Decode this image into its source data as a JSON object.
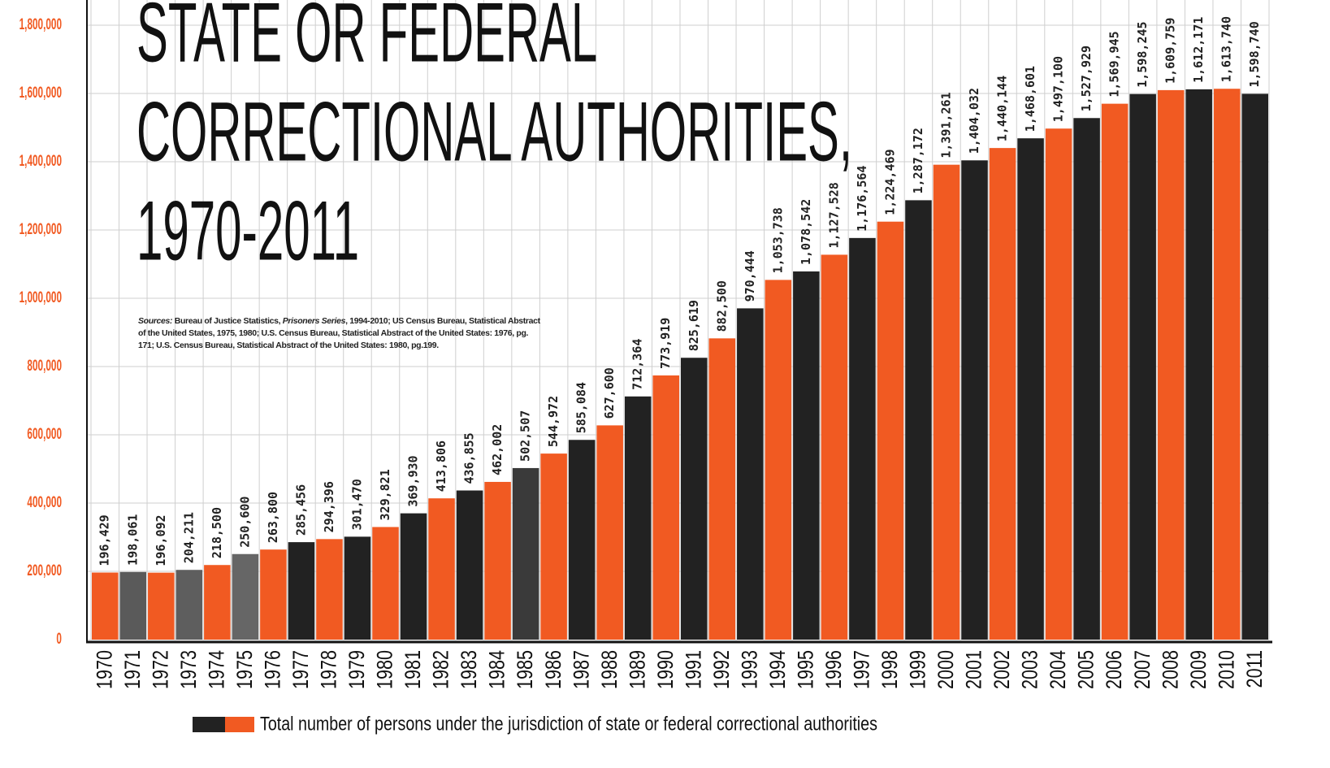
{
  "chart_data": {
    "type": "bar",
    "title": [
      "STATE OR FEDERAL",
      "CORRECTIONAL AUTHORITIES,",
      "1970-2011"
    ],
    "source": {
      "label": "Sources:",
      "text": "Bureau of Justice Statistics,",
      "publication": "Prisoners Series",
      "rest": ", 1994-2010; US Census Bureau, Statistical Abstract of the United States, 1975, 1980; U.S. Census Bureau, Statistical Abstract of the United States: 1976, pg. 171; U.S. Census Bureau, Statistical Abstract of the United States: 1980, pg.199."
    },
    "categories": [
      "1970",
      "1971",
      "1972",
      "1973",
      "1974",
      "1975",
      "1976",
      "1977",
      "1978",
      "1979",
      "1980",
      "1981",
      "1982",
      "1983",
      "1984",
      "1985",
      "1986",
      "1987",
      "1988",
      "1989",
      "1990",
      "1991",
      "1992",
      "1993",
      "1994",
      "1995",
      "1996",
      "1997",
      "1998",
      "1999",
      "2000",
      "2001",
      "2002",
      "2003",
      "2004",
      "2005",
      "2006",
      "2007",
      "2008",
      "2009",
      "2010",
      "2011"
    ],
    "series": [
      {
        "name": "Total number of persons under the jurisdiction of state or federal correctional authorities",
        "color": [
          "#222222",
          "#f15a22"
        ],
        "values": [
          196429,
          198061,
          196092,
          204211,
          218500,
          250600,
          263800,
          285456,
          294396,
          301470,
          329821,
          369930,
          413806,
          436855,
          462002,
          502507,
          544972,
          585084,
          627600,
          712364,
          773919,
          825619,
          882500,
          970444,
          1053738,
          1078542,
          1127528,
          1176564,
          1224469,
          1287172,
          1391261,
          1404032,
          1440144,
          1468601,
          1497100,
          1527929,
          1569945,
          1598245,
          1609759,
          1612171,
          1613740,
          1598740
        ],
        "value_labels": [
          "196,429",
          "198,061",
          "196,092",
          "204,211",
          "218,500",
          "250,600",
          "263,800",
          "285,456",
          "294,396",
          "301,470",
          "329,821",
          "369,930",
          "413,806",
          "436,855",
          "462,002",
          "502,507",
          "544,972",
          "585,084",
          "627,600",
          "712,364",
          "773,919",
          "825,619",
          "882,500",
          "970,444",
          "1,053,738",
          "1,078,542",
          "1,127,528",
          "1,176,564",
          "1,224,469",
          "1,287,172",
          "1,391,261",
          "1,404,032",
          "1,440,144",
          "1,468,601",
          "1,497,100",
          "1,527,929",
          "1,569,945",
          "1,598,245",
          "1,609,759",
          "1,612,171",
          "1,613,740",
          "1,598,740"
        ],
        "colors": [
          "#f15a22",
          "#5a5a5a",
          "#f15a22",
          "#5e5e5e",
          "#f15a22",
          "#666666",
          "#f15a22",
          "#222222",
          "#f15a22",
          "#222222",
          "#f15a22",
          "#222222",
          "#f15a22",
          "#222222",
          "#f15a22",
          "#3a3a3a",
          "#f15a22",
          "#222222",
          "#f15a22",
          "#222222",
          "#f15a22",
          "#222222",
          "#f15a22",
          "#222222",
          "#f15a22",
          "#222222",
          "#f15a22",
          "#222222",
          "#f15a22",
          "#222222",
          "#f15a22",
          "#222222",
          "#f15a22",
          "#222222",
          "#f15a22",
          "#222222",
          "#f15a22",
          "#222222",
          "#f15a22",
          "#222222",
          "#f15a22",
          "#222222"
        ]
      }
    ],
    "ylim": [
      0,
      1850000
    ],
    "yticks": [
      0,
      {
        "value": 200000,
        "label": "200,000"
      },
      {
        "value": 400000,
        "label": "400,000"
      },
      {
        "value": 600000,
        "label": "600,000"
      },
      {
        "value": 800000,
        "label": "800,000"
      },
      {
        "value": 1000000,
        "label": "1,000,000"
      },
      {
        "value": 1200000,
        "label": "1,200,000"
      },
      {
        "value": 1400000,
        "label": "1,400,000"
      },
      {
        "value": 1600000,
        "label": "1,600,000"
      },
      {
        "value": 1800000,
        "label": "1,800,000"
      }
    ],
    "ytick_color": "#f15a22",
    "grid": true
  }
}
